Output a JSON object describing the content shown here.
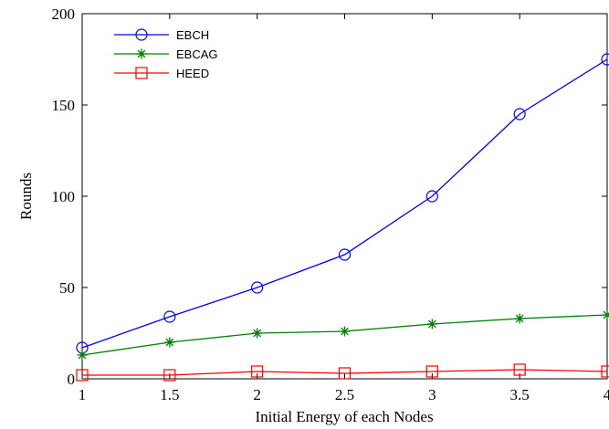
{
  "chart_data": {
    "type": "line",
    "title": "",
    "xlabel": "Initial Energy of each Nodes",
    "ylabel": "Rounds",
    "xlim": [
      1,
      4
    ],
    "ylim": [
      0,
      200
    ],
    "x": [
      1,
      1.5,
      2,
      2.5,
      3,
      3.5,
      4
    ],
    "x_ticks": [
      "1",
      "1.5",
      "2",
      "2.5",
      "3",
      "3.5",
      "4"
    ],
    "y_ticks": [
      0,
      50,
      100,
      150,
      200
    ],
    "grid": false,
    "legend_position": "top-left",
    "series": [
      {
        "name": "EBCH",
        "color": "#0000ff",
        "marker": "circle",
        "values": [
          17,
          34,
          50,
          68,
          100,
          145,
          175
        ]
      },
      {
        "name": "EBCAG",
        "color": "#008000",
        "marker": "star",
        "values": [
          13,
          20,
          25,
          26,
          30,
          33,
          35
        ]
      },
      {
        "name": "HEED",
        "color": "#ff0000",
        "marker": "square",
        "values": [
          2,
          2,
          4,
          3,
          4,
          5,
          4
        ]
      }
    ]
  }
}
